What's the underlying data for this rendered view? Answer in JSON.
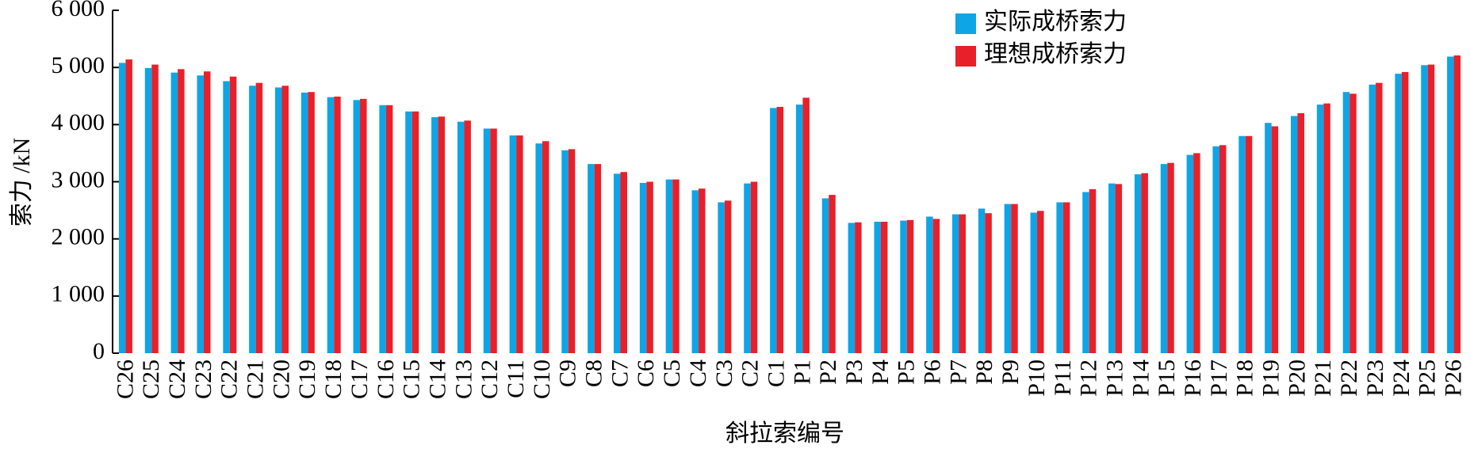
{
  "chart_data": {
    "type": "bar",
    "y_label": "索力 /kN",
    "x_label": "斜拉索编号",
    "categories": [
      "C26",
      "C25",
      "C24",
      "C23",
      "C22",
      "C21",
      "C20",
      "C19",
      "C18",
      "C17",
      "C16",
      "C15",
      "C14",
      "C13",
      "C12",
      "C11",
      "C10",
      "C9",
      "C8",
      "C7",
      "C6",
      "C5",
      "C4",
      "C3",
      "C2",
      "C1",
      "P1",
      "P2",
      "P3",
      "P4",
      "P5",
      "P6",
      "P7",
      "P8",
      "P9",
      "P10",
      "P11",
      "P12",
      "P13",
      "P14",
      "P15",
      "P16",
      "P17",
      "P18",
      "P19",
      "P20",
      "P21",
      "P22",
      "P23",
      "P24",
      "P25",
      "P26"
    ],
    "series": [
      {
        "name": "实际成桥索力",
        "color": "#0ea5e6",
        "values": [
          5080,
          4990,
          4910,
          4860,
          4760,
          4680,
          4650,
          4560,
          4480,
          4430,
          4340,
          4230,
          4130,
          4050,
          3930,
          3810,
          3670,
          3550,
          3310,
          3140,
          2980,
          3040,
          2850,
          2640,
          2970,
          4290,
          4350,
          2710,
          2280,
          2300,
          2320,
          2390,
          2430,
          2530,
          2610,
          2460,
          2640,
          2820,
          2970,
          3130,
          3310,
          3470,
          3620,
          3800,
          4030,
          4150,
          4350,
          4570,
          4700,
          4890,
          5040,
          5190
        ]
      },
      {
        "name": "理想成桥索力",
        "color": "#e8202a",
        "values": [
          5140,
          5050,
          4970,
          4930,
          4840,
          4730,
          4680,
          4570,
          4490,
          4450,
          4340,
          4230,
          4140,
          4070,
          3930,
          3810,
          3710,
          3570,
          3310,
          3170,
          3000,
          3040,
          2880,
          2670,
          3000,
          4310,
          4470,
          2770,
          2290,
          2300,
          2330,
          2350,
          2430,
          2450,
          2610,
          2490,
          2640,
          2870,
          2960,
          3150,
          3330,
          3500,
          3640,
          3800,
          3970,
          4200,
          4370,
          4540,
          4730,
          4920,
          5050,
          5210
        ]
      }
    ],
    "ylim": [
      0,
      6000
    ],
    "yticks": [
      0,
      {
        "value": 1000,
        "label": "1 000"
      },
      {
        "value": 2000,
        "label": "2 000"
      },
      {
        "value": 3000,
        "label": "3 000"
      },
      {
        "value": 4000,
        "label": "4 000"
      },
      {
        "value": 5000,
        "label": "5 000"
      },
      {
        "value": 6000,
        "label": "6 000"
      }
    ],
    "legend": "top-right"
  }
}
